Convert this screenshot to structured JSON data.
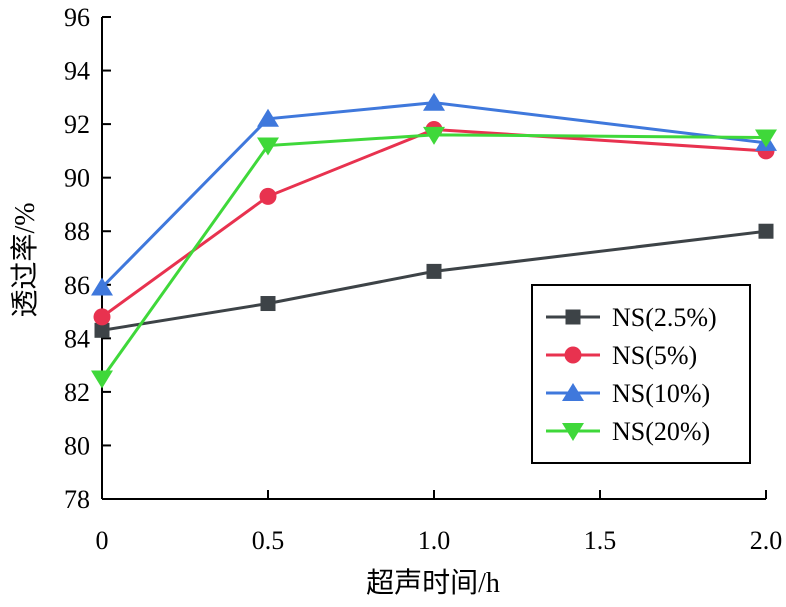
{
  "chart_data": {
    "type": "line",
    "xlabel": "超声时间/h",
    "ylabel": "透过率/%",
    "xlim": [
      0,
      2.0
    ],
    "ylim": [
      78,
      96
    ],
    "x_ticks": [
      "0",
      "0.5",
      "1.0",
      "1.5",
      "2.0"
    ],
    "y_ticks": [
      "78",
      "80",
      "82",
      "84",
      "86",
      "88",
      "90",
      "92",
      "94",
      "96"
    ],
    "grid": false,
    "legend_position": "bottom-right",
    "series": [
      {
        "name": "NS(2.5%)",
        "color": "#3d4347",
        "marker": "square",
        "x": [
          0,
          0.5,
          1.0,
          2.0
        ],
        "values": [
          84.3,
          85.3,
          86.5,
          88.0
        ]
      },
      {
        "name": "NS(5%)",
        "color": "#e8324f",
        "marker": "circle",
        "x": [
          0,
          0.5,
          1.0,
          2.0
        ],
        "values": [
          84.8,
          89.3,
          91.8,
          91.0
        ]
      },
      {
        "name": "NS(10%)",
        "color": "#3f78dc",
        "marker": "triangle-up",
        "x": [
          0,
          0.5,
          1.0,
          2.0
        ],
        "values": [
          85.9,
          92.2,
          92.8,
          91.3
        ]
      },
      {
        "name": "NS(20%)",
        "color": "#3fd83a",
        "marker": "triangle-down",
        "x": [
          0,
          0.5,
          1.0,
          2.0
        ],
        "values": [
          82.5,
          91.2,
          91.6,
          91.5
        ]
      }
    ]
  }
}
